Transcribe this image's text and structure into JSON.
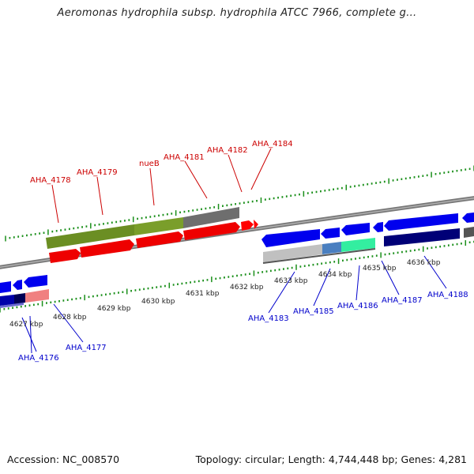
{
  "title": "Aeromonas hydrophila subsp. hydrophila ATCC 7966, complete g...",
  "footer": {
    "accession": "Accession: NC_008570",
    "stats": "Topology: circular; Length: 4,744,448 bp; Genes: 4,281"
  },
  "colors": {
    "forward_gene_label": "#cc0000",
    "reverse_gene_label": "#0000cc",
    "forward_cds": "#ff0000",
    "forward_gene": "#6b8e23",
    "reverse_cds": "#0000ff",
    "tick": "#1a8f1a",
    "backbone": "#808080"
  },
  "kbp_labels": [
    "4627 kbp",
    "4628 kbp",
    "4629 kbp",
    "4630 kbp",
    "4631 kbp",
    "4632 kbp",
    "4633 kbp",
    "4634 kbp",
    "4635 kbp",
    "4636 kbp"
  ],
  "forward_genes": [
    "AHA_4178",
    "AHA_4179",
    "nueB",
    "AHA_4181",
    "AHA_4182",
    "AHA_4184"
  ],
  "reverse_genes": [
    "AHA_4176",
    "AHA_4177",
    "AHA_4183",
    "AHA_4185",
    "AHA_4186",
    "AHA_4187",
    "AHA_4188"
  ]
}
